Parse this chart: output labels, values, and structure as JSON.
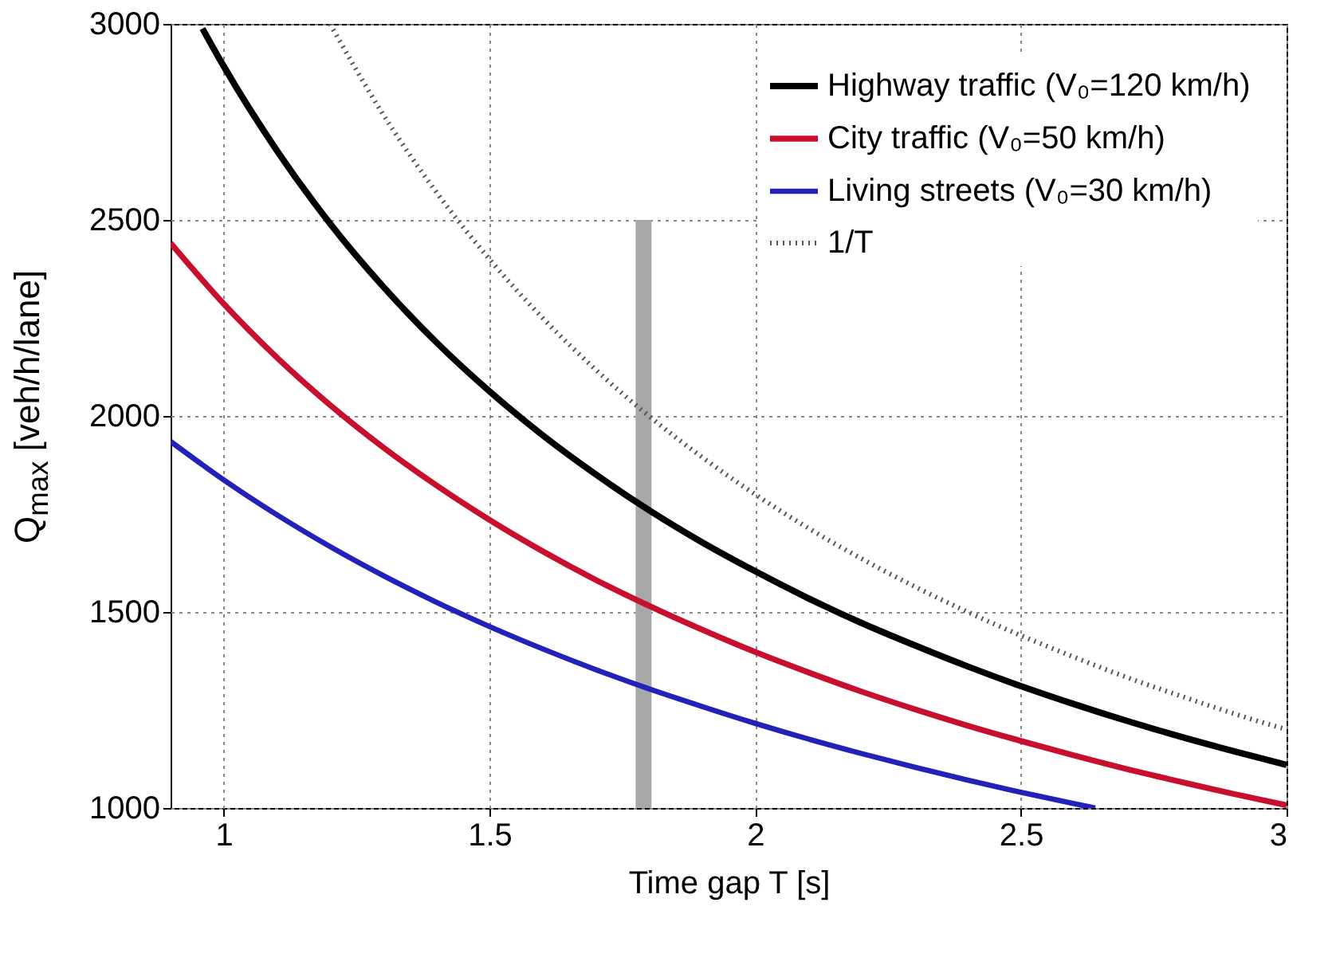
{
  "chart_data": {
    "type": "line",
    "xlabel": "Time gap T [s]",
    "ylabel": "Q$_{max}$ [veh/h/lane]",
    "xlim": [
      0.9,
      3
    ],
    "xticks": [
      1,
      1.5,
      2,
      2.5,
      3
    ],
    "ylim": [
      1000,
      3000
    ],
    "yticks": [
      1000,
      1500,
      2000,
      2500,
      3000
    ],
    "grid": true,
    "legend": "top right",
    "series": [
      {
        "name": "Highway traffic (V₀=120 km/h)",
        "color": "#000000",
        "x": [
          0.96,
          1.0,
          1.1,
          1.2,
          1.3,
          1.4,
          1.5,
          1.6,
          1.7,
          1.8,
          1.9,
          2.0,
          2.1,
          2.2,
          2.3,
          2.4,
          2.5,
          2.6,
          2.7,
          2.8,
          2.9,
          3.0
        ],
        "values": [
          2988,
          2892,
          2677,
          2491,
          2330,
          2188,
          2063,
          1951,
          1851,
          1760,
          1678,
          1604,
          1535,
          1472,
          1415,
          1361,
          1311,
          1265,
          1222,
          1182,
          1145,
          1110
        ]
      },
      {
        "name": "City traffic (V₀=50 km/h)",
        "color": "#c8102e",
        "x": [
          0.9,
          1.0,
          1.1,
          1.2,
          1.3,
          1.4,
          1.5,
          1.6,
          1.7,
          1.8,
          1.9,
          2.0,
          2.1,
          2.2,
          2.3,
          2.4,
          2.5,
          2.6,
          2.7,
          2.8,
          2.9,
          3.0
        ],
        "values": [
          2441,
          2286,
          2149,
          2028,
          1920,
          1823,
          1735,
          1655,
          1582,
          1516,
          1455,
          1398,
          1346,
          1297,
          1252,
          1210,
          1171,
          1134,
          1099,
          1067,
          1036,
          1007
        ]
      },
      {
        "name": "Living streets (V₀=30 km/h)",
        "color": "#2222bb",
        "x": [
          0.9,
          1.0,
          1.1,
          1.2,
          1.3,
          1.4,
          1.5,
          1.6,
          1.7,
          1.8,
          1.9,
          2.0,
          2.1,
          2.2,
          2.3,
          2.4,
          2.5,
          2.6,
          2.64
        ],
        "values": [
          1935,
          1837,
          1748,
          1667,
          1593,
          1525,
          1463,
          1406,
          1353,
          1304,
          1259,
          1216,
          1176,
          1139,
          1104,
          1071,
          1040,
          1011,
          1000
        ]
      },
      {
        "name": "1/T",
        "color": "#555555",
        "line_style": "dotted",
        "x": [
          1.2,
          1.3,
          1.4,
          1.5,
          1.6,
          1.7,
          1.8,
          1.9,
          2.0,
          2.1,
          2.2,
          2.3,
          2.4,
          2.5,
          2.6,
          2.7,
          2.8,
          2.9,
          3.0
        ],
        "values": [
          3000,
          2769,
          2571,
          2400,
          2250,
          2118,
          2000,
          1895,
          1800,
          1714,
          1636,
          1565,
          1500,
          1440,
          1385,
          1333,
          1286,
          1241,
          1200
        ]
      },
      {
        "color": "#a8a8a8",
        "x": [
          1.79,
          1.79
        ],
        "values": [
          1000,
          2500
        ]
      }
    ]
  }
}
